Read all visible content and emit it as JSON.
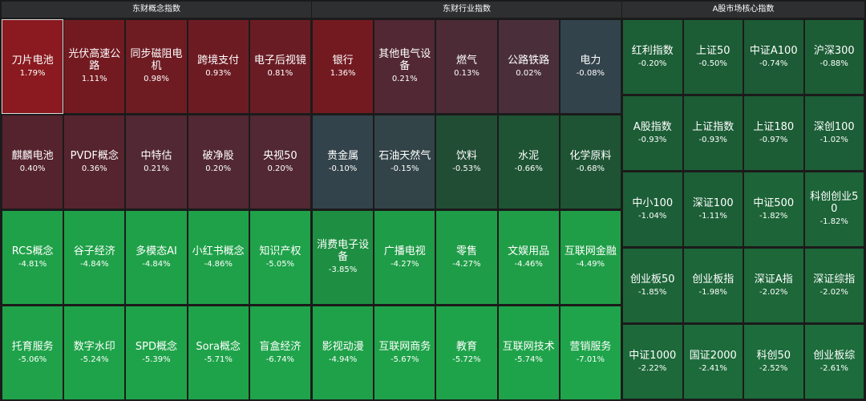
{
  "panels": [
    {
      "title": "东财概念指数",
      "cols": 5,
      "rows": [
        [
          {
            "name": "刀片电池",
            "pct": "1.79%",
            "color": "#8a1a1f",
            "selected": true
          },
          {
            "name": "光伏高速公路",
            "pct": "1.11%",
            "color": "#731a21"
          },
          {
            "name": "同步磁阻电机",
            "pct": "0.98%",
            "color": "#6e1b22"
          },
          {
            "name": "跨境支付",
            "pct": "0.93%",
            "color": "#6d1b23"
          },
          {
            "name": "电子后视镜",
            "pct": "0.81%",
            "color": "#6a1c24"
          }
        ],
        [
          {
            "name": "麒麟电池",
            "pct": "0.40%",
            "color": "#55232e"
          },
          {
            "name": "PVDF概念",
            "pct": "0.36%",
            "color": "#55242f"
          },
          {
            "name": "中特估",
            "pct": "0.21%",
            "color": "#512833"
          },
          {
            "name": "破净股",
            "pct": "0.20%",
            "color": "#512833"
          },
          {
            "name": "央视50",
            "pct": "0.20%",
            "color": "#512833"
          }
        ],
        [
          {
            "name": "RCS概念",
            "pct": "-4.81%",
            "color": "#1fa149"
          },
          {
            "name": "谷子经济",
            "pct": "-4.84%",
            "color": "#1fa149"
          },
          {
            "name": "多模态AI",
            "pct": "-4.84%",
            "color": "#1fa149"
          },
          {
            "name": "小红书概念",
            "pct": "-4.86%",
            "color": "#1fa149"
          },
          {
            "name": "知识产权",
            "pct": "-5.05%",
            "color": "#1fa24a"
          }
        ],
        [
          {
            "name": "托育服务",
            "pct": "-5.06%",
            "color": "#1fa24a"
          },
          {
            "name": "数字水印",
            "pct": "-5.24%",
            "color": "#1fa34a"
          },
          {
            "name": "SPD概念",
            "pct": "-5.39%",
            "color": "#1fa34a"
          },
          {
            "name": "Sora概念",
            "pct": "-5.71%",
            "color": "#1fa34a"
          },
          {
            "name": "盲盒经济",
            "pct": "-6.74%",
            "color": "#1fa44b"
          }
        ]
      ]
    },
    {
      "title": "东财行业指数",
      "cols": 5,
      "rows": [
        [
          {
            "name": "银行",
            "pct": "1.36%",
            "color": "#731a21"
          },
          {
            "name": "其他电气设备",
            "pct": "0.21%",
            "color": "#512833"
          },
          {
            "name": "燃气",
            "pct": "0.13%",
            "color": "#4c2b37"
          },
          {
            "name": "公路铁路",
            "pct": "0.02%",
            "color": "#4a2f3a"
          },
          {
            "name": "电力",
            "pct": "-0.08%",
            "color": "#33434b"
          }
        ],
        [
          {
            "name": "贵金属",
            "pct": "-0.10%",
            "color": "#33434b"
          },
          {
            "name": "石油天然气",
            "pct": "-0.15%",
            "color": "#334449"
          },
          {
            "name": "饮料",
            "pct": "-0.53%",
            "color": "#224d35"
          },
          {
            "name": "水泥",
            "pct": "-0.66%",
            "color": "#1e5434"
          },
          {
            "name": "化学原料",
            "pct": "-0.68%",
            "color": "#1e5434"
          }
        ],
        [
          {
            "name": "消费电子设备",
            "pct": "-3.85%",
            "color": "#1e8f42"
          },
          {
            "name": "广播电视",
            "pct": "-4.27%",
            "color": "#1f9c47"
          },
          {
            "name": "零售",
            "pct": "-4.27%",
            "color": "#1f9c47"
          },
          {
            "name": "文娱用品",
            "pct": "-4.46%",
            "color": "#1f9e47"
          },
          {
            "name": "互联网金融",
            "pct": "-4.49%",
            "color": "#1f9e47"
          }
        ],
        [
          {
            "name": "影视动漫",
            "pct": "-4.94%",
            "color": "#1fa149"
          },
          {
            "name": "互联网商务",
            "pct": "-5.67%",
            "color": "#1fa34a"
          },
          {
            "name": "教育",
            "pct": "-5.72%",
            "color": "#1fa34a"
          },
          {
            "name": "互联网技术",
            "pct": "-5.74%",
            "color": "#1fa34a"
          },
          {
            "name": "营销服务",
            "pct": "-7.01%",
            "color": "#1fa44b"
          }
        ]
      ]
    },
    {
      "title": "A股市场核心指数",
      "cols": 4,
      "rows": [
        [
          {
            "name": "红利指数",
            "pct": "-0.20%",
            "color": "#1c5f36"
          },
          {
            "name": "上证50",
            "pct": "-0.50%",
            "color": "#1c5d36"
          },
          {
            "name": "中证A100",
            "pct": "-0.74%",
            "color": "#1c5b35"
          },
          {
            "name": "沪深300",
            "pct": "-0.88%",
            "color": "#1c5d36"
          }
        ],
        [
          {
            "name": "A股指数",
            "pct": "-0.93%",
            "color": "#1c5d36"
          },
          {
            "name": "上证指数",
            "pct": "-0.93%",
            "color": "#1c5d36"
          },
          {
            "name": "上证180",
            "pct": "-0.97%",
            "color": "#1c5d36"
          },
          {
            "name": "深创100",
            "pct": "-1.02%",
            "color": "#1c5e37"
          }
        ],
        [
          {
            "name": "中小100",
            "pct": "-1.04%",
            "color": "#1c5e37"
          },
          {
            "name": "深证100",
            "pct": "-1.11%",
            "color": "#1c5f37"
          },
          {
            "name": "中证500",
            "pct": "-1.82%",
            "color": "#1d6438"
          },
          {
            "name": "科创创业50",
            "pct": "-1.82%",
            "color": "#1d6438"
          }
        ],
        [
          {
            "name": "创业板50",
            "pct": "-1.85%",
            "color": "#1d6539"
          },
          {
            "name": "创业板指",
            "pct": "-1.98%",
            "color": "#1d6639"
          },
          {
            "name": "深证A指",
            "pct": "-2.02%",
            "color": "#1d6739"
          },
          {
            "name": "深证综指",
            "pct": "-2.02%",
            "color": "#1d6739"
          }
        ],
        [
          {
            "name": "中证1000",
            "pct": "-2.22%",
            "color": "#1d693a"
          },
          {
            "name": "国证2000",
            "pct": "-2.41%",
            "color": "#1d6b3b"
          },
          {
            "name": "科创50",
            "pct": "-2.52%",
            "color": "#1d6c3b"
          },
          {
            "name": "创业板综",
            "pct": "-2.61%",
            "color": "#1d6d3c"
          }
        ]
      ]
    }
  ]
}
